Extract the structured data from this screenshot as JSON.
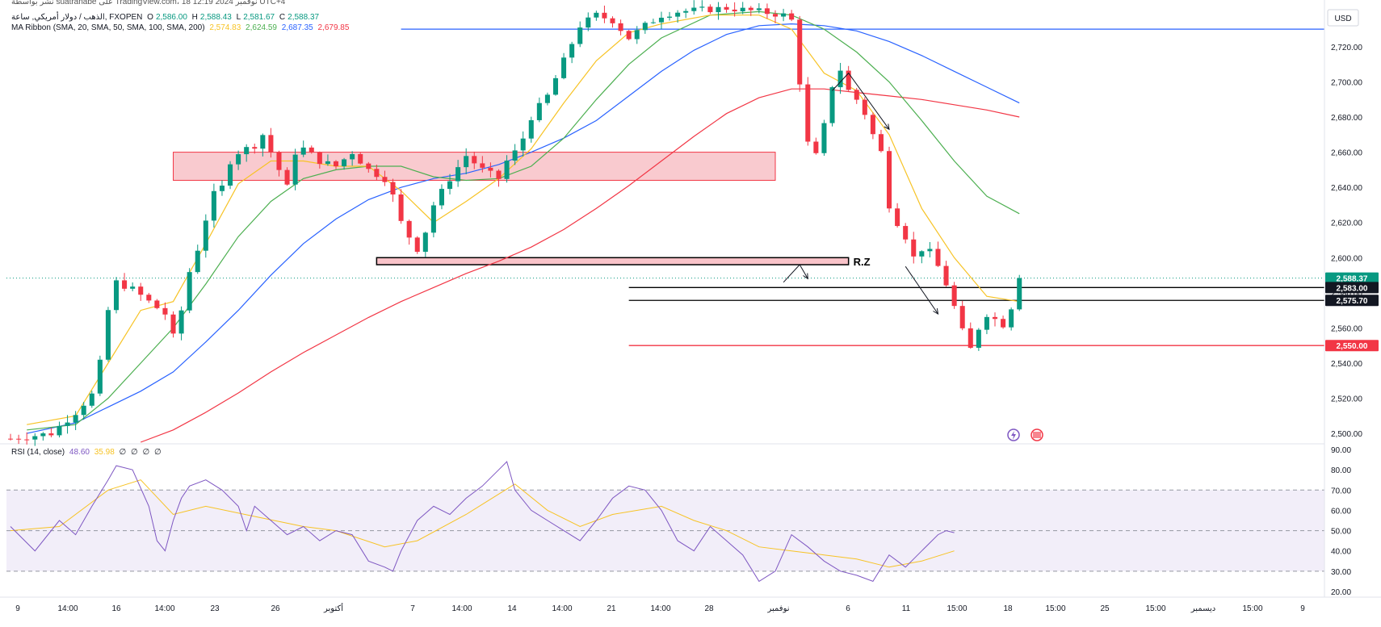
{
  "header": {
    "publisher_line": "نشر بواسطة suatranabe على TradingView.com، 18 نوفمبر 2024 12:19 UTC+4",
    "symbol_line": "الذهب / دولار أمريكي, ساعة, FXOPEN",
    "ohlc": {
      "o_label": "O",
      "o": "2,586.00",
      "h_label": "H",
      "h": "2,588.43",
      "l_label": "L",
      "l": "2,581.67",
      "c_label": "C",
      "c": "2,588.37"
    },
    "ma_label": "MA Ribbon (SMA, 20, SMA, 50, SMA, 100, SMA, 200)",
    "ma_values": [
      "2,574.83",
      "2,624.59",
      "2,687.35",
      "2,679.85"
    ],
    "rsi_label": "RSI (14, close)",
    "rsi_values": [
      "48.60",
      "35.98",
      "∅",
      "∅",
      "∅",
      "∅"
    ]
  },
  "currency": "USD",
  "colors": {
    "up": "#089981",
    "down": "#f23645",
    "sma20": "#f7c325",
    "sma50": "#4caf50",
    "sma100": "#2962ff",
    "sma200": "#f23645",
    "rsi": "#7e57c2",
    "rsi_ma": "#f7c325",
    "zone_fill": "#f7b4bb",
    "zone_stroke": "#f23645",
    "rz_stroke": "#000000",
    "blue_line": "#2962ff",
    "red_line": "#f23645",
    "black_line": "#000000",
    "last_price": "#089981"
  },
  "chart_data": {
    "type": "candlestick",
    "symbol": "XAUUSD",
    "timeframe": "1h",
    "ylim": [
      2495,
      2742
    ],
    "price_ticks": [
      2500,
      2520,
      2540,
      2560,
      2580,
      2600,
      2620,
      2640,
      2660,
      2680,
      2700,
      2720
    ],
    "price_tick_labels": [
      "2,500.00",
      "2,520.00",
      "2,540.00",
      "2,560.00",
      "2,580.00",
      "2,600.00",
      "2,620.00",
      "2,640.00",
      "2,660.00",
      "2,680.00",
      "2,700.00",
      "2,720.00"
    ],
    "x_ticks": [
      "9",
      "14:00",
      "16",
      "14:00",
      "23",
      "26",
      "أكتوبر",
      "7",
      "14:00",
      "14",
      "14:00",
      "21",
      "14:00",
      "28",
      "نوفمبر",
      "6",
      "11",
      "15:00",
      "18",
      "15:00",
      "25",
      "15:00",
      "ديسمبر",
      "15:00",
      "9"
    ],
    "price_path": [
      [
        0,
        2497
      ],
      [
        5,
        2500
      ],
      [
        8,
        2512
      ],
      [
        10,
        2522
      ],
      [
        11,
        2540
      ],
      [
        12,
        2570
      ],
      [
        13,
        2586
      ],
      [
        15,
        2582
      ],
      [
        17,
        2575
      ],
      [
        19,
        2568
      ],
      [
        20,
        2555
      ],
      [
        21,
        2570
      ],
      [
        22,
        2592
      ],
      [
        23,
        2605
      ],
      [
        24,
        2622
      ],
      [
        25,
        2636
      ],
      [
        26,
        2640
      ],
      [
        27,
        2655
      ],
      [
        28,
        2660
      ],
      [
        30,
        2664
      ],
      [
        31,
        2670
      ],
      [
        32,
        2660
      ],
      [
        33,
        2650
      ],
      [
        34,
        2640
      ],
      [
        35,
        2660
      ],
      [
        36,
        2662
      ],
      [
        38,
        2655
      ],
      [
        40,
        2652
      ],
      [
        42,
        2660
      ],
      [
        44,
        2650
      ],
      [
        46,
        2645
      ],
      [
        47,
        2635
      ],
      [
        48,
        2620
      ],
      [
        49,
        2612
      ],
      [
        50,
        2605
      ],
      [
        51,
        2615
      ],
      [
        52,
        2630
      ],
      [
        54,
        2645
      ],
      [
        56,
        2658
      ],
      [
        58,
        2650
      ],
      [
        60,
        2645
      ],
      [
        61,
        2655
      ],
      [
        62,
        2660
      ],
      [
        63,
        2668
      ],
      [
        64,
        2680
      ],
      [
        66,
        2692
      ],
      [
        68,
        2712
      ],
      [
        70,
        2732
      ],
      [
        72,
        2738
      ],
      [
        74,
        2735
      ],
      [
        76,
        2725
      ],
      [
        78,
        2732
      ],
      [
        80,
        2738
      ],
      [
        82,
        2740
      ],
      [
        88,
        2742
      ],
      [
        92,
        2740
      ],
      [
        95,
        2738
      ],
      [
        96,
        2735
      ],
      [
        97,
        2700
      ],
      [
        98,
        2665
      ],
      [
        99,
        2658
      ],
      [
        100,
        2675
      ],
      [
        101,
        2698
      ],
      [
        102,
        2707
      ],
      [
        103,
        2695
      ],
      [
        104,
        2690
      ],
      [
        105,
        2682
      ],
      [
        106,
        2670
      ],
      [
        107,
        2660
      ],
      [
        108,
        2630
      ],
      [
        109,
        2620
      ],
      [
        110,
        2612
      ],
      [
        111,
        2600
      ],
      [
        112,
        2605
      ],
      [
        113,
        2603
      ],
      [
        114,
        2595
      ],
      [
        115,
        2585
      ],
      [
        116,
        2572
      ],
      [
        117,
        2558
      ],
      [
        118,
        2548
      ],
      [
        119,
        2560
      ],
      [
        120,
        2568
      ],
      [
        121,
        2565
      ],
      [
        122,
        2562
      ],
      [
        123,
        2572
      ],
      [
        124,
        2588
      ]
    ],
    "sma20": [
      [
        2,
        2505
      ],
      [
        8,
        2510
      ],
      [
        12,
        2540
      ],
      [
        16,
        2570
      ],
      [
        20,
        2575
      ],
      [
        24,
        2608
      ],
      [
        28,
        2642
      ],
      [
        32,
        2655
      ],
      [
        36,
        2655
      ],
      [
        40,
        2652
      ],
      [
        44,
        2652
      ],
      [
        48,
        2638
      ],
      [
        52,
        2620
      ],
      [
        56,
        2632
      ],
      [
        60,
        2645
      ],
      [
        64,
        2662
      ],
      [
        68,
        2688
      ],
      [
        72,
        2712
      ],
      [
        76,
        2728
      ],
      [
        80,
        2733
      ],
      [
        86,
        2738
      ],
      [
        92,
        2738
      ],
      [
        96,
        2730
      ],
      [
        100,
        2705
      ],
      [
        104,
        2695
      ],
      [
        108,
        2670
      ],
      [
        112,
        2628
      ],
      [
        116,
        2600
      ],
      [
        120,
        2578
      ],
      [
        124,
        2575
      ]
    ],
    "sma50": [
      [
        2,
        2502
      ],
      [
        8,
        2505
      ],
      [
        12,
        2520
      ],
      [
        16,
        2540
      ],
      [
        20,
        2560
      ],
      [
        24,
        2585
      ],
      [
        28,
        2612
      ],
      [
        32,
        2632
      ],
      [
        36,
        2645
      ],
      [
        40,
        2650
      ],
      [
        44,
        2652
      ],
      [
        48,
        2652
      ],
      [
        52,
        2646
      ],
      [
        56,
        2644
      ],
      [
        60,
        2645
      ],
      [
        64,
        2652
      ],
      [
        68,
        2668
      ],
      [
        72,
        2690
      ],
      [
        76,
        2710
      ],
      [
        80,
        2725
      ],
      [
        86,
        2738
      ],
      [
        92,
        2740
      ],
      [
        96,
        2738
      ],
      [
        100,
        2730
      ],
      [
        104,
        2717
      ],
      [
        108,
        2700
      ],
      [
        112,
        2678
      ],
      [
        116,
        2655
      ],
      [
        120,
        2635
      ],
      [
        124,
        2625
      ]
    ],
    "sma100": [
      [
        2,
        2500
      ],
      [
        8,
        2506
      ],
      [
        12,
        2515
      ],
      [
        16,
        2524
      ],
      [
        20,
        2535
      ],
      [
        24,
        2552
      ],
      [
        28,
        2570
      ],
      [
        32,
        2590
      ],
      [
        36,
        2608
      ],
      [
        40,
        2622
      ],
      [
        44,
        2633
      ],
      [
        48,
        2640
      ],
      [
        52,
        2645
      ],
      [
        56,
        2648
      ],
      [
        60,
        2653
      ],
      [
        64,
        2660
      ],
      [
        68,
        2668
      ],
      [
        72,
        2678
      ],
      [
        76,
        2692
      ],
      [
        80,
        2706
      ],
      [
        84,
        2718
      ],
      [
        88,
        2727
      ],
      [
        92,
        2732
      ],
      [
        96,
        2733
      ],
      [
        100,
        2732
      ],
      [
        104,
        2729
      ],
      [
        108,
        2723
      ],
      [
        112,
        2715
      ],
      [
        116,
        2706
      ],
      [
        120,
        2697
      ],
      [
        124,
        2688
      ]
    ],
    "sma200": [
      [
        16,
        2495
      ],
      [
        20,
        2502
      ],
      [
        24,
        2512
      ],
      [
        28,
        2523
      ],
      [
        32,
        2535
      ],
      [
        36,
        2546
      ],
      [
        40,
        2556
      ],
      [
        44,
        2566
      ],
      [
        48,
        2575
      ],
      [
        52,
        2583
      ],
      [
        56,
        2591
      ],
      [
        60,
        2598
      ],
      [
        64,
        2606
      ],
      [
        68,
        2616
      ],
      [
        72,
        2628
      ],
      [
        76,
        2641
      ],
      [
        80,
        2655
      ],
      [
        84,
        2669
      ],
      [
        88,
        2682
      ],
      [
        92,
        2691
      ],
      [
        96,
        2696
      ],
      [
        100,
        2696
      ],
      [
        104,
        2694
      ],
      [
        108,
        2692
      ],
      [
        112,
        2690
      ],
      [
        116,
        2687
      ],
      [
        120,
        2684
      ],
      [
        124,
        2680
      ]
    ],
    "zones": [
      {
        "name": "supply-zone",
        "x1": 20,
        "x2": 94,
        "y_low": 2644,
        "y_high": 2660
      },
      {
        "name": "rz-zone",
        "label": "R.Z",
        "x1": 45,
        "x2": 103,
        "y_low": 2596,
        "y_high": 2600
      }
    ],
    "horizontal_levels": [
      {
        "name": "blue-level",
        "price": 2730,
        "x1": 48,
        "role": "resistance"
      },
      {
        "name": "level-2583",
        "price": 2583.0,
        "label": "2,583.00",
        "x1": 76
      },
      {
        "name": "level-2575",
        "price": 2575.7,
        "label": "2,575.70",
        "x1": 76
      },
      {
        "name": "level-2550",
        "price": 2550.0,
        "label": "2,550.00",
        "x1": 76
      }
    ],
    "last_price": {
      "price": 2588.37,
      "label": "2,588.37"
    },
    "arrows": [
      {
        "name": "down-arrow-1",
        "points": [
          [
            101,
            2695
          ],
          [
            103,
            2705
          ],
          [
            108,
            2673
          ]
        ]
      },
      {
        "name": "down-arrow-2",
        "points": [
          [
            110,
            2595
          ],
          [
            114,
            2568
          ]
        ]
      },
      {
        "name": "bounce-arrow",
        "points": [
          [
            95,
            2586
          ],
          [
            97,
            2596
          ],
          [
            98,
            2588
          ]
        ]
      }
    ],
    "rsi": {
      "ylim": [
        18,
        92
      ],
      "ticks": [
        20,
        30,
        40,
        50,
        60,
        70,
        80,
        90
      ],
      "tick_labels": [
        "20.00",
        "30.00",
        "40.00",
        "50.00",
        "60.00",
        "70.00",
        "80.00",
        "90.00"
      ],
      "band": [
        30,
        70
      ],
      "mid": 50,
      "values": [
        [
          0,
          52
        ],
        [
          3,
          40
        ],
        [
          6,
          55
        ],
        [
          8,
          48
        ],
        [
          10,
          62
        ],
        [
          12,
          75
        ],
        [
          13,
          82
        ],
        [
          15,
          80
        ],
        [
          17,
          62
        ],
        [
          18,
          45
        ],
        [
          19,
          40
        ],
        [
          20,
          55
        ],
        [
          21,
          66
        ],
        [
          22,
          72
        ],
        [
          24,
          75
        ],
        [
          26,
          70
        ],
        [
          28,
          62
        ],
        [
          29,
          50
        ],
        [
          30,
          62
        ],
        [
          32,
          55
        ],
        [
          34,
          48
        ],
        [
          36,
          52
        ],
        [
          38,
          45
        ],
        [
          40,
          50
        ],
        [
          42,
          48
        ],
        [
          44,
          35
        ],
        [
          46,
          32
        ],
        [
          47,
          30
        ],
        [
          48,
          40
        ],
        [
          50,
          55
        ],
        [
          52,
          62
        ],
        [
          54,
          58
        ],
        [
          56,
          66
        ],
        [
          58,
          72
        ],
        [
          60,
          80
        ],
        [
          61,
          84
        ],
        [
          62,
          70
        ],
        [
          64,
          60
        ],
        [
          66,
          55
        ],
        [
          68,
          50
        ],
        [
          70,
          45
        ],
        [
          72,
          55
        ],
        [
          74,
          66
        ],
        [
          76,
          72
        ],
        [
          78,
          70
        ],
        [
          80,
          60
        ],
        [
          82,
          45
        ],
        [
          84,
          40
        ],
        [
          86,
          52
        ],
        [
          88,
          45
        ],
        [
          90,
          38
        ],
        [
          92,
          25
        ],
        [
          94,
          30
        ],
        [
          96,
          48
        ],
        [
          98,
          42
        ],
        [
          100,
          35
        ],
        [
          102,
          30
        ],
        [
          104,
          28
        ],
        [
          106,
          25
        ],
        [
          108,
          38
        ],
        [
          110,
          32
        ],
        [
          112,
          40
        ],
        [
          114,
          48
        ],
        [
          115,
          50
        ],
        [
          116,
          49
        ]
      ],
      "ma_values": [
        [
          0,
          50
        ],
        [
          6,
          52
        ],
        [
          12,
          70
        ],
        [
          16,
          75
        ],
        [
          20,
          58
        ],
        [
          24,
          62
        ],
        [
          30,
          57
        ],
        [
          36,
          52
        ],
        [
          40,
          50
        ],
        [
          46,
          42
        ],
        [
          50,
          45
        ],
        [
          56,
          58
        ],
        [
          60,
          68
        ],
        [
          62,
          73
        ],
        [
          66,
          60
        ],
        [
          70,
          52
        ],
        [
          74,
          58
        ],
        [
          80,
          62
        ],
        [
          84,
          55
        ],
        [
          88,
          50
        ],
        [
          92,
          42
        ],
        [
          96,
          40
        ],
        [
          100,
          38
        ],
        [
          104,
          36
        ],
        [
          108,
          32
        ],
        [
          112,
          35
        ],
        [
          116,
          40
        ]
      ]
    }
  }
}
